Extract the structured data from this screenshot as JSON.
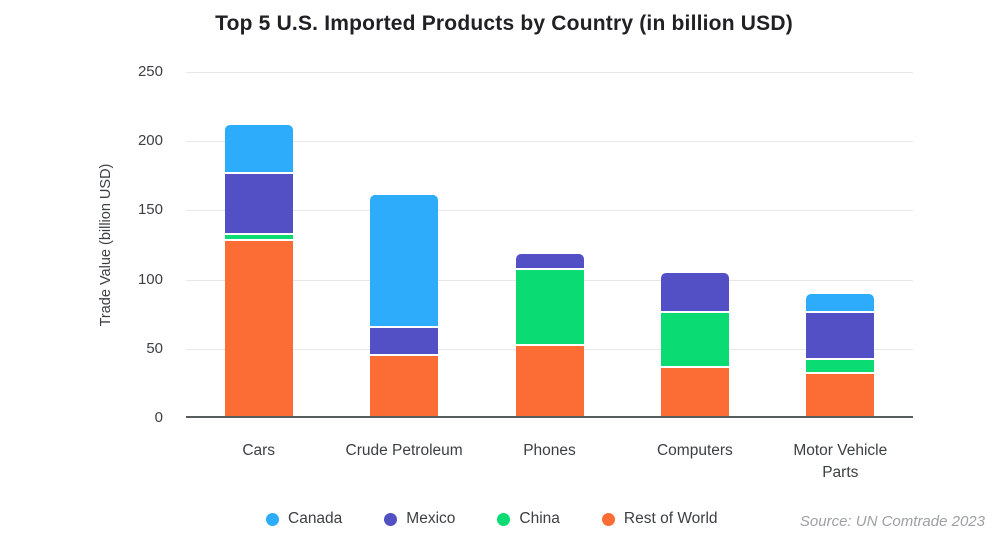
{
  "title": "Top 5 U.S. Imported Products by Country (in billion USD)",
  "source_note": "Source: UN Comtrade 2023",
  "colors": {
    "canada": "#2DACFB",
    "mexico": "#5350C5",
    "china": "#0ADB72",
    "rest_of_world": "#FB6D35",
    "gridline": "#E7E7E7",
    "axis_line": "#595C5F",
    "text": "#3C4043",
    "title_text": "#202124",
    "source_text": "#9CA0A4"
  },
  "chart_data": {
    "type": "bar",
    "stacked": true,
    "title": "Top 5 U.S. Imported Products by Country (in billion USD)",
    "xlabel": "",
    "ylabel": "Trade Value (billion USD)",
    "ylim": [
      0,
      250
    ],
    "yticks": [
      0,
      50,
      100,
      150,
      200,
      250
    ],
    "grid": true,
    "legend_position": "bottom",
    "stack_order_bottom_to_top": [
      "Rest of World",
      "China",
      "Mexico",
      "Canada"
    ],
    "categories": [
      "Cars",
      "Crude Petroleum",
      "Phones",
      "Computers",
      "Motor Vehicle Parts"
    ],
    "series": [
      {
        "name": "Canada",
        "color": "#2DACFB",
        "values": [
          34,
          95,
          0,
          0,
          12
        ]
      },
      {
        "name": "Mexico",
        "color": "#5350C5",
        "values": [
          44,
          20,
          10,
          27,
          34
        ]
      },
      {
        "name": "China",
        "color": "#0ADB72",
        "values": [
          4,
          0,
          55,
          40,
          10
        ]
      },
      {
        "name": "Rest of World",
        "color": "#FB6D35",
        "values": [
          128,
          45,
          52,
          36,
          32
        ]
      }
    ],
    "totals": [
      210,
      160,
      117,
      103,
      88
    ]
  }
}
